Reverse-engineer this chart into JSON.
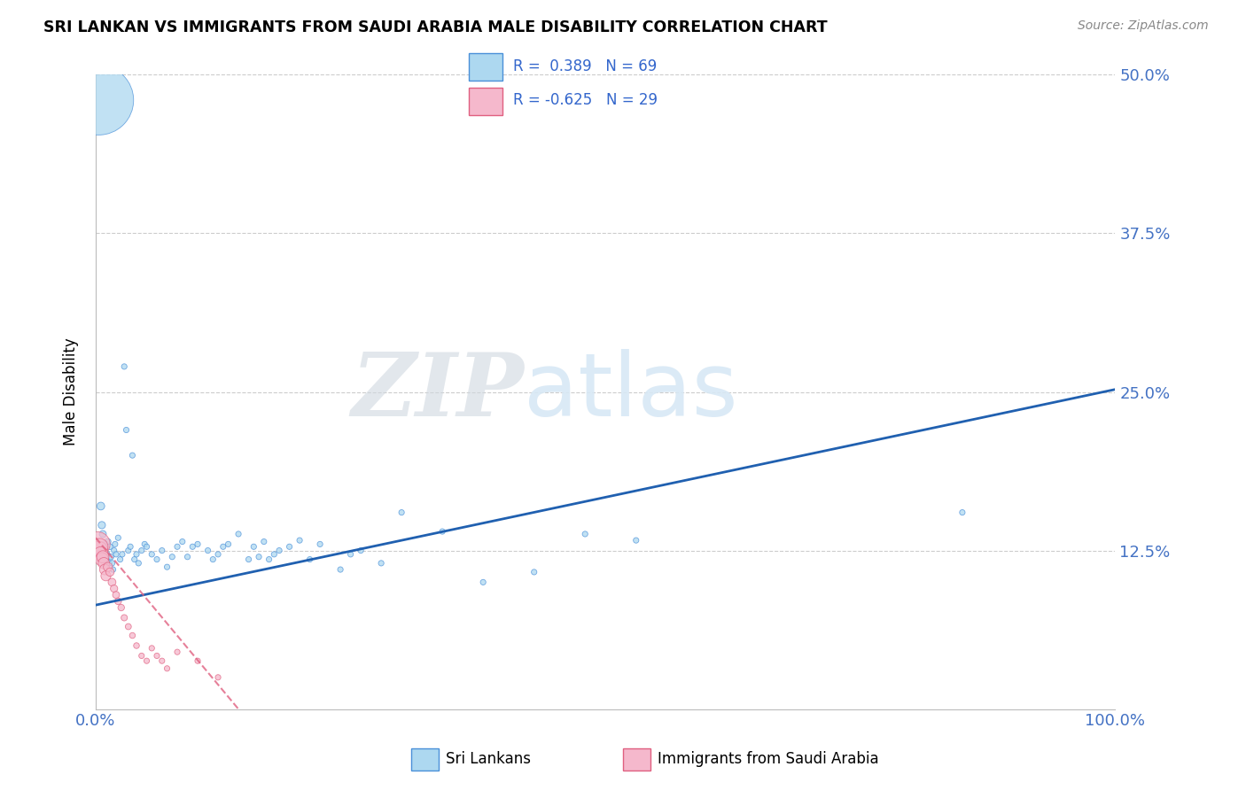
{
  "title": "SRI LANKAN VS IMMIGRANTS FROM SAUDI ARABIA MALE DISABILITY CORRELATION CHART",
  "source": "Source: ZipAtlas.com",
  "ylabel": "Male Disability",
  "xlim": [
    0.0,
    1.0
  ],
  "ylim": [
    0.0,
    0.5
  ],
  "yticks": [
    0.0,
    0.125,
    0.25,
    0.375,
    0.5
  ],
  "ytick_labels": [
    "",
    "12.5%",
    "25.0%",
    "37.5%",
    "50.0%"
  ],
  "xticks": [
    0.0,
    0.25,
    0.5,
    0.75,
    1.0
  ],
  "xtick_labels": [
    "0.0%",
    "",
    "",
    "",
    "100.0%"
  ],
  "blue_R": 0.389,
  "blue_N": 69,
  "pink_R": -0.625,
  "pink_N": 29,
  "blue_color": "#add8f0",
  "blue_edge_color": "#4a90d9",
  "blue_line_color": "#2060b0",
  "pink_color": "#f5b8cc",
  "pink_edge_color": "#e06080",
  "pink_line_color": "#d04070",
  "watermark_color": "#d8e8f5",
  "grid_color": "#cccccc",
  "blue_line_x0": 0.0,
  "blue_line_y0": 0.082,
  "blue_line_x1": 1.0,
  "blue_line_y1": 0.252,
  "pink_line_x0": 0.0,
  "pink_line_y0": 0.135,
  "pink_line_x1": 0.14,
  "pink_line_y1": 0.0,
  "blue_x": [
    0.003,
    0.005,
    0.006,
    0.007,
    0.008,
    0.009,
    0.01,
    0.011,
    0.012,
    0.013,
    0.014,
    0.015,
    0.016,
    0.017,
    0.018,
    0.019,
    0.02,
    0.022,
    0.024,
    0.026,
    0.028,
    0.03,
    0.032,
    0.034,
    0.036,
    0.038,
    0.04,
    0.042,
    0.045,
    0.048,
    0.05,
    0.055,
    0.06,
    0.065,
    0.07,
    0.075,
    0.08,
    0.085,
    0.09,
    0.095,
    0.1,
    0.11,
    0.115,
    0.12,
    0.125,
    0.13,
    0.14,
    0.15,
    0.155,
    0.16,
    0.165,
    0.17,
    0.175,
    0.18,
    0.19,
    0.2,
    0.21,
    0.22,
    0.24,
    0.25,
    0.26,
    0.28,
    0.3,
    0.34,
    0.38,
    0.43,
    0.48,
    0.53,
    0.85
  ],
  "blue_y": [
    0.48,
    0.16,
    0.145,
    0.138,
    0.125,
    0.13,
    0.118,
    0.122,
    0.132,
    0.115,
    0.128,
    0.12,
    0.115,
    0.11,
    0.125,
    0.13,
    0.122,
    0.135,
    0.118,
    0.122,
    0.27,
    0.22,
    0.125,
    0.128,
    0.2,
    0.118,
    0.122,
    0.115,
    0.125,
    0.13,
    0.128,
    0.122,
    0.118,
    0.125,
    0.112,
    0.12,
    0.128,
    0.132,
    0.12,
    0.128,
    0.13,
    0.125,
    0.118,
    0.122,
    0.128,
    0.13,
    0.138,
    0.118,
    0.128,
    0.12,
    0.132,
    0.118,
    0.122,
    0.125,
    0.128,
    0.133,
    0.118,
    0.13,
    0.11,
    0.122,
    0.125,
    0.115,
    0.155,
    0.14,
    0.1,
    0.108,
    0.138,
    0.133,
    0.155
  ],
  "blue_sizes": [
    3200,
    40,
    35,
    32,
    30,
    28,
    26,
    25,
    24,
    23,
    22,
    22,
    22,
    20,
    20,
    20,
    20,
    20,
    20,
    20,
    20,
    20,
    20,
    20,
    20,
    20,
    20,
    20,
    20,
    20,
    20,
    20,
    20,
    20,
    20,
    20,
    20,
    20,
    20,
    20,
    20,
    20,
    20,
    20,
    20,
    20,
    20,
    20,
    20,
    20,
    20,
    20,
    20,
    20,
    20,
    20,
    20,
    20,
    20,
    20,
    20,
    20,
    20,
    20,
    20,
    20,
    20,
    20,
    20
  ],
  "pink_x": [
    0.002,
    0.003,
    0.004,
    0.005,
    0.006,
    0.007,
    0.008,
    0.009,
    0.01,
    0.012,
    0.014,
    0.016,
    0.018,
    0.02,
    0.022,
    0.025,
    0.028,
    0.032,
    0.036,
    0.04,
    0.045,
    0.05,
    0.055,
    0.06,
    0.065,
    0.07,
    0.08,
    0.1,
    0.12
  ],
  "pink_y": [
    0.13,
    0.125,
    0.128,
    0.122,
    0.118,
    0.12,
    0.115,
    0.11,
    0.105,
    0.112,
    0.108,
    0.1,
    0.095,
    0.09,
    0.085,
    0.08,
    0.072,
    0.065,
    0.058,
    0.05,
    0.042,
    0.038,
    0.048,
    0.042,
    0.038,
    0.032,
    0.045,
    0.038,
    0.025
  ],
  "pink_sizes": [
    400,
    220,
    180,
    150,
    120,
    100,
    85,
    75,
    65,
    55,
    45,
    40,
    35,
    32,
    30,
    28,
    26,
    24,
    22,
    22,
    20,
    20,
    20,
    20,
    20,
    20,
    20,
    20,
    20
  ]
}
